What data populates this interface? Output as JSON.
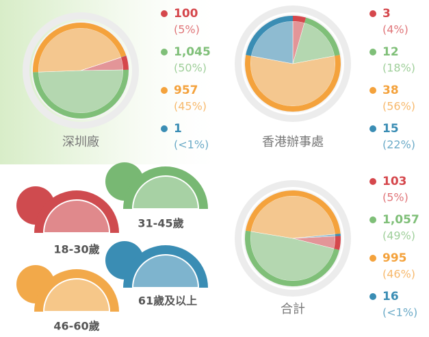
{
  "chart_data": [
    {
      "type": "pie",
      "title": "深圳廠",
      "values": [
        100,
        1045,
        957,
        1
      ],
      "value_labels": [
        "100",
        "1,045",
        "957",
        "1"
      ],
      "percent_labels": [
        "(5%)",
        "(50%)",
        "(45%)",
        "(<1%)"
      ],
      "colors": [
        "#d5474c",
        "#7fbf78",
        "#f4a23c",
        "#3a8db4"
      ]
    },
    {
      "type": "pie",
      "title": "香港辦事處",
      "values": [
        3,
        12,
        38,
        15
      ],
      "value_labels": [
        "3",
        "12",
        "38",
        "15"
      ],
      "percent_labels": [
        "(4%)",
        "(18%)",
        "(56%)",
        "(22%)"
      ],
      "colors": [
        "#d5474c",
        "#7fbf78",
        "#f4a23c",
        "#3a8db4"
      ]
    },
    {
      "type": "pie",
      "title": "合計",
      "values": [
        103,
        1057,
        995,
        16
      ],
      "value_labels": [
        "103",
        "1,057",
        "995",
        "16"
      ],
      "percent_labels": [
        "(5%)",
        "(49%)",
        "(46%)",
        "(<1%)"
      ],
      "colors": [
        "#d5474c",
        "#7fbf78",
        "#f4a23c",
        "#3a8db4"
      ]
    }
  ],
  "age_groups": [
    "18-30歲",
    "31-45歲",
    "46-60歲",
    "61歲及以上"
  ]
}
